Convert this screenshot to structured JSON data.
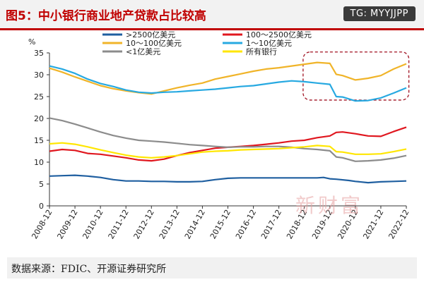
{
  "header": {
    "title": "图5：中小银行商业地产贷款占比较高",
    "tag": "TG: MYYJJPP"
  },
  "source": "数据来源：FDIC、开源证券研究所",
  "watermark_text": "新财富",
  "colors": {
    "title_red": "#c00000",
    "highlight_box": "#a01020"
  },
  "chart_data": {
    "type": "line",
    "ylabel": "%",
    "ylim": [
      0,
      35
    ],
    "yticks": [
      0,
      5,
      10,
      15,
      20,
      25,
      30,
      35
    ],
    "xlim": [
      2008.75,
      2022.75
    ],
    "xtick_labels": [
      "2008-12",
      "2009-12",
      "2010-12",
      "2011-12",
      "2012-12",
      "2013-12",
      "2014-12",
      "2015-12",
      "2016-12",
      "2017-12",
      "2018-12",
      "2019-12",
      "2020-12",
      "2021-12",
      "2022-12"
    ],
    "grid": false,
    "legend_placement": "top",
    "highlight_region": {
      "x": [
        2018.7,
        2022.85
      ],
      "y": [
        24.2,
        35.2
      ]
    },
    "series": [
      {
        "name": ">2500亿美元",
        "color": "#1f5fa0",
        "points": [
          [
            2008.75,
            6.8
          ],
          [
            2009.25,
            6.9
          ],
          [
            2009.75,
            7.0
          ],
          [
            2010.25,
            6.8
          ],
          [
            2010.75,
            6.5
          ],
          [
            2011.25,
            6.0
          ],
          [
            2011.75,
            5.7
          ],
          [
            2012.25,
            5.7
          ],
          [
            2012.75,
            5.6
          ],
          [
            2013.25,
            5.6
          ],
          [
            2013.75,
            5.5
          ],
          [
            2014.25,
            5.5
          ],
          [
            2014.75,
            5.6
          ],
          [
            2015.25,
            6.0
          ],
          [
            2015.75,
            6.3
          ],
          [
            2016.25,
            6.4
          ],
          [
            2016.75,
            6.4
          ],
          [
            2017.25,
            6.4
          ],
          [
            2017.75,
            6.4
          ],
          [
            2018.25,
            6.4
          ],
          [
            2018.75,
            6.4
          ],
          [
            2019.25,
            6.4
          ],
          [
            2019.5,
            6.5
          ],
          [
            2019.75,
            6.2
          ],
          [
            2020.0,
            6.1
          ],
          [
            2020.5,
            5.8
          ],
          [
            2020.75,
            5.6
          ],
          [
            2021.25,
            5.3
          ],
          [
            2021.75,
            5.5
          ],
          [
            2022.25,
            5.6
          ],
          [
            2022.75,
            5.7
          ]
        ]
      },
      {
        "name": "100～2500亿美元",
        "color": "#e0171f",
        "points": [
          [
            2008.75,
            12.5
          ],
          [
            2009.25,
            12.9
          ],
          [
            2009.75,
            12.7
          ],
          [
            2010.25,
            12.0
          ],
          [
            2010.75,
            11.8
          ],
          [
            2011.25,
            11.4
          ],
          [
            2011.75,
            11.0
          ],
          [
            2012.25,
            10.5
          ],
          [
            2012.75,
            10.3
          ],
          [
            2013.25,
            10.7
          ],
          [
            2013.75,
            11.5
          ],
          [
            2014.25,
            12.2
          ],
          [
            2014.75,
            12.7
          ],
          [
            2015.25,
            13.2
          ],
          [
            2015.75,
            13.4
          ],
          [
            2016.25,
            13.6
          ],
          [
            2016.75,
            13.8
          ],
          [
            2017.25,
            14.1
          ],
          [
            2017.75,
            14.4
          ],
          [
            2018.25,
            14.8
          ],
          [
            2018.75,
            15.0
          ],
          [
            2019.25,
            15.6
          ],
          [
            2019.75,
            16.0
          ],
          [
            2020.0,
            16.8
          ],
          [
            2020.25,
            16.9
          ],
          [
            2020.75,
            16.5
          ],
          [
            2021.25,
            16.0
          ],
          [
            2021.75,
            15.9
          ],
          [
            2022.25,
            17.0
          ],
          [
            2022.75,
            18.0
          ]
        ]
      },
      {
        "name": "10～100亿美元",
        "color": "#f0b429",
        "points": [
          [
            2008.75,
            31.5
          ],
          [
            2009.25,
            30.6
          ],
          [
            2009.75,
            29.5
          ],
          [
            2010.25,
            28.5
          ],
          [
            2010.75,
            27.5
          ],
          [
            2011.25,
            26.8
          ],
          [
            2011.75,
            26.3
          ],
          [
            2012.25,
            25.9
          ],
          [
            2012.75,
            25.6
          ],
          [
            2013.25,
            26.3
          ],
          [
            2013.75,
            27.0
          ],
          [
            2014.25,
            27.6
          ],
          [
            2014.75,
            28.1
          ],
          [
            2015.25,
            29.0
          ],
          [
            2015.75,
            29.6
          ],
          [
            2016.25,
            30.2
          ],
          [
            2016.75,
            30.8
          ],
          [
            2017.25,
            31.3
          ],
          [
            2017.75,
            31.6
          ],
          [
            2018.25,
            32.0
          ],
          [
            2018.75,
            32.4
          ],
          [
            2019.25,
            32.8
          ],
          [
            2019.75,
            32.6
          ],
          [
            2020.0,
            30.1
          ],
          [
            2020.25,
            29.8
          ],
          [
            2020.75,
            28.8
          ],
          [
            2021.25,
            29.2
          ],
          [
            2021.75,
            29.8
          ],
          [
            2022.25,
            31.3
          ],
          [
            2022.75,
            32.5
          ]
        ]
      },
      {
        "name": "1～10亿美元",
        "color": "#27a9e1",
        "points": [
          [
            2008.75,
            32.0
          ],
          [
            2009.25,
            31.3
          ],
          [
            2009.75,
            30.3
          ],
          [
            2010.25,
            29.0
          ],
          [
            2010.75,
            28.0
          ],
          [
            2011.25,
            27.3
          ],
          [
            2011.75,
            26.5
          ],
          [
            2012.25,
            26.0
          ],
          [
            2012.75,
            25.8
          ],
          [
            2013.25,
            26.0
          ],
          [
            2013.75,
            26.1
          ],
          [
            2014.25,
            26.3
          ],
          [
            2014.75,
            26.5
          ],
          [
            2015.25,
            26.7
          ],
          [
            2015.75,
            27.0
          ],
          [
            2016.25,
            27.3
          ],
          [
            2016.75,
            27.5
          ],
          [
            2017.25,
            27.9
          ],
          [
            2017.75,
            28.3
          ],
          [
            2018.25,
            28.6
          ],
          [
            2018.75,
            28.4
          ],
          [
            2019.25,
            28.1
          ],
          [
            2019.75,
            27.8
          ],
          [
            2020.0,
            25.0
          ],
          [
            2020.25,
            24.9
          ],
          [
            2020.75,
            24.0
          ],
          [
            2021.25,
            24.1
          ],
          [
            2021.75,
            24.7
          ],
          [
            2022.25,
            25.8
          ],
          [
            2022.75,
            27.0
          ]
        ]
      },
      {
        "name": "<1亿美元",
        "color": "#8c8c8c",
        "points": [
          [
            2008.75,
            20.1
          ],
          [
            2009.25,
            19.5
          ],
          [
            2009.75,
            18.7
          ],
          [
            2010.25,
            17.8
          ],
          [
            2010.75,
            16.9
          ],
          [
            2011.25,
            16.1
          ],
          [
            2011.75,
            15.5
          ],
          [
            2012.25,
            15.0
          ],
          [
            2012.75,
            14.8
          ],
          [
            2013.25,
            14.6
          ],
          [
            2013.75,
            14.3
          ],
          [
            2014.25,
            14.0
          ],
          [
            2014.75,
            13.8
          ],
          [
            2015.25,
            13.6
          ],
          [
            2015.75,
            13.4
          ],
          [
            2016.25,
            13.5
          ],
          [
            2016.75,
            13.5
          ],
          [
            2017.25,
            13.6
          ],
          [
            2017.75,
            13.6
          ],
          [
            2018.25,
            13.4
          ],
          [
            2018.75,
            13.1
          ],
          [
            2019.25,
            12.9
          ],
          [
            2019.75,
            12.6
          ],
          [
            2020.0,
            11.2
          ],
          [
            2020.25,
            11.0
          ],
          [
            2020.75,
            10.2
          ],
          [
            2021.25,
            10.3
          ],
          [
            2021.75,
            10.5
          ],
          [
            2022.25,
            10.9
          ],
          [
            2022.75,
            11.5
          ]
        ]
      },
      {
        "name": "所有银行",
        "color": "#ffe600",
        "points": [
          [
            2008.75,
            14.2
          ],
          [
            2009.25,
            14.4
          ],
          [
            2009.75,
            14.1
          ],
          [
            2010.25,
            13.5
          ],
          [
            2010.75,
            12.8
          ],
          [
            2011.25,
            12.2
          ],
          [
            2011.75,
            11.6
          ],
          [
            2012.25,
            11.2
          ],
          [
            2012.75,
            11.0
          ],
          [
            2013.25,
            11.2
          ],
          [
            2013.75,
            11.5
          ],
          [
            2014.25,
            11.9
          ],
          [
            2014.75,
            12.3
          ],
          [
            2015.25,
            12.5
          ],
          [
            2015.75,
            12.6
          ],
          [
            2016.25,
            12.8
          ],
          [
            2016.75,
            12.9
          ],
          [
            2017.25,
            13.0
          ],
          [
            2017.75,
            13.1
          ],
          [
            2018.25,
            13.3
          ],
          [
            2018.75,
            13.5
          ],
          [
            2019.25,
            13.8
          ],
          [
            2019.75,
            13.6
          ],
          [
            2020.0,
            12.4
          ],
          [
            2020.25,
            12.3
          ],
          [
            2020.75,
            11.8
          ],
          [
            2021.25,
            11.8
          ],
          [
            2021.75,
            11.9
          ],
          [
            2022.25,
            12.4
          ],
          [
            2022.75,
            13.0
          ]
        ]
      }
    ]
  }
}
